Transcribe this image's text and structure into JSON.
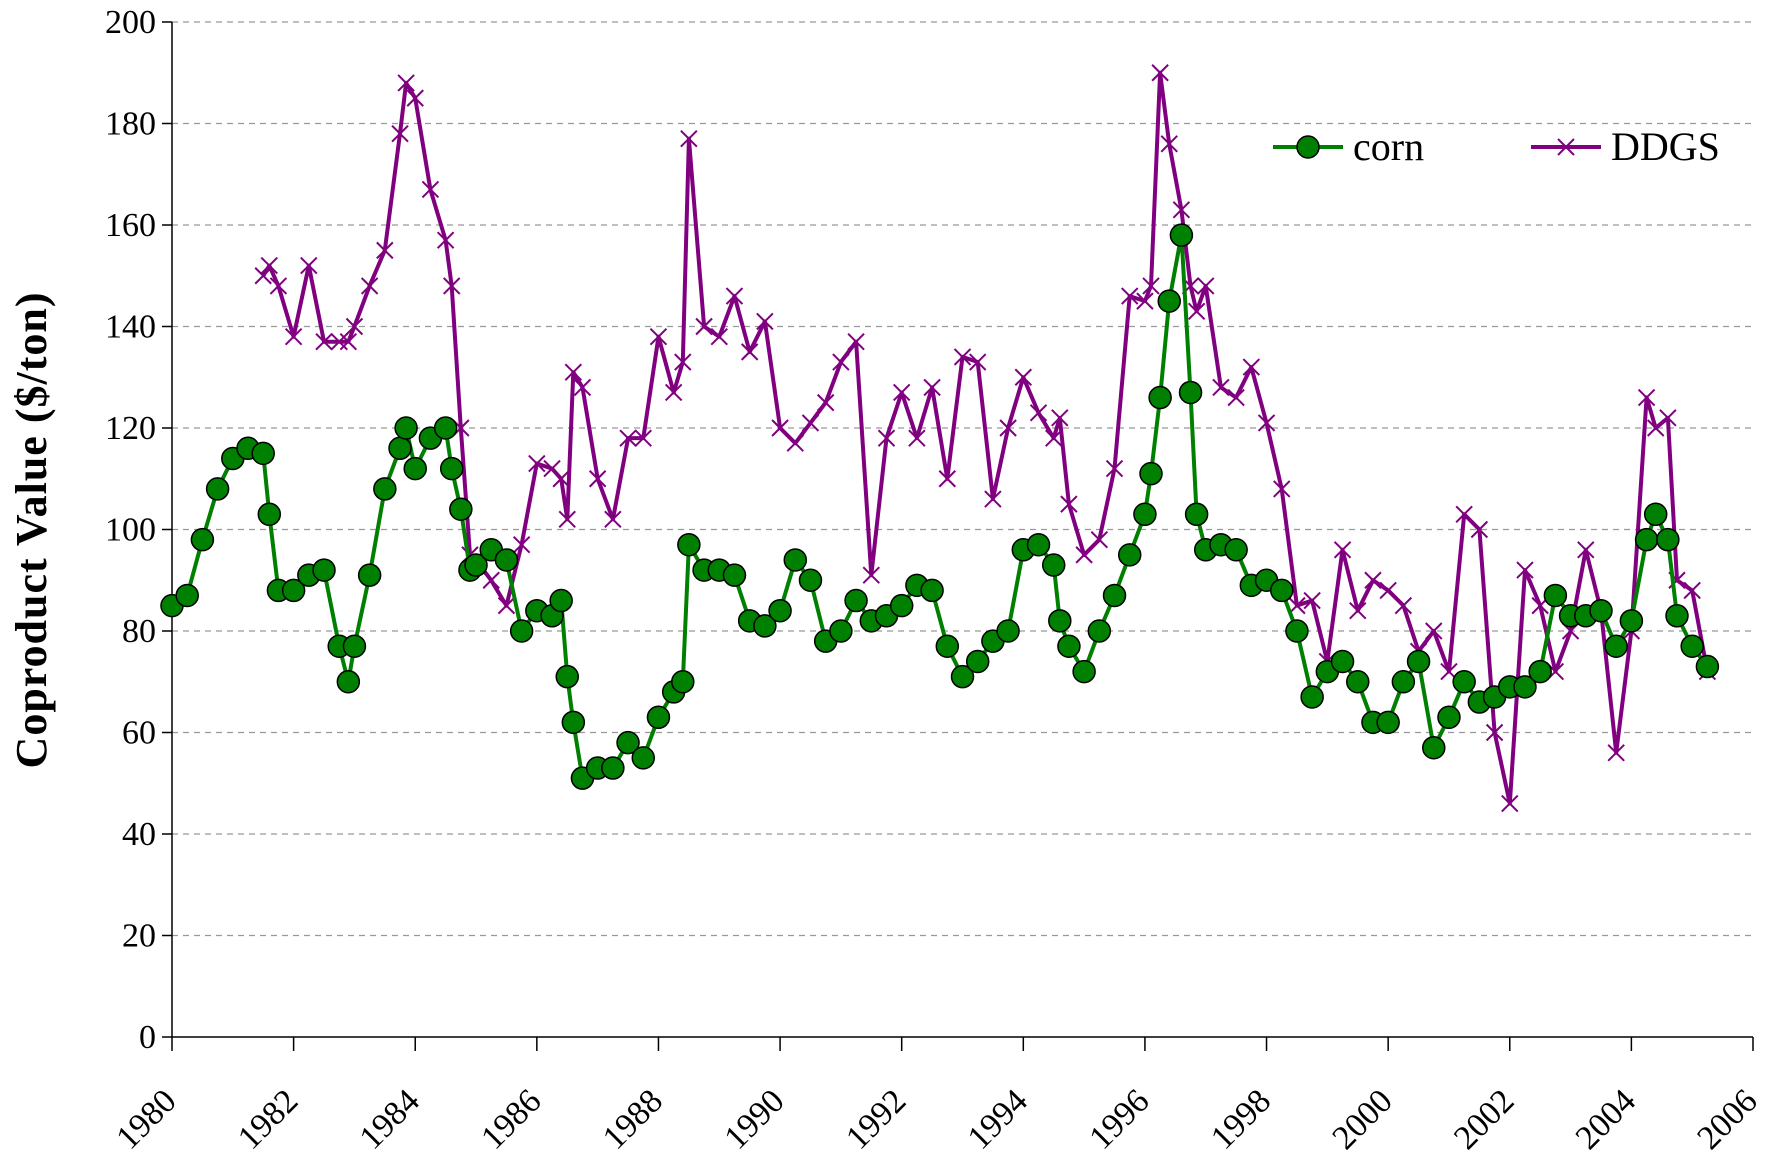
{
  "chart_data": {
    "type": "line",
    "y_label": "Coproduct Value ($/ton)",
    "x": [
      1980,
      1980.25,
      1980.5,
      1980.75,
      1981,
      1981.25,
      1981.5,
      1981.6,
      1981.75,
      1982,
      1982.25,
      1982.5,
      1982.75,
      1982.9,
      1983,
      1983.25,
      1983.5,
      1983.75,
      1983.85,
      1984,
      1984.25,
      1984.5,
      1984.6,
      1984.75,
      1984.9,
      1985,
      1985.25,
      1985.5,
      1985.75,
      1986,
      1986.25,
      1986.4,
      1986.5,
      1986.6,
      1986.75,
      1987,
      1987.25,
      1987.5,
      1987.75,
      1988,
      1988.25,
      1988.4,
      1988.5,
      1988.75,
      1989,
      1989.25,
      1989.5,
      1989.75,
      1990,
      1990.25,
      1990.5,
      1990.75,
      1991,
      1991.25,
      1991.5,
      1991.75,
      1992,
      1992.25,
      1992.5,
      1992.75,
      1993,
      1993.25,
      1993.5,
      1993.75,
      1994,
      1994.25,
      1994.5,
      1994.6,
      1994.75,
      1995,
      1995.25,
      1995.5,
      1995.75,
      1996,
      1996.1,
      1996.25,
      1996.4,
      1996.6,
      1996.75,
      1996.85,
      1997,
      1997.25,
      1997.5,
      1997.75,
      1998,
      1998.25,
      1998.5,
      1998.75,
      1999,
      1999.25,
      1999.5,
      1999.75,
      2000,
      2000.25,
      2000.5,
      2000.75,
      2001,
      2001.25,
      2001.5,
      2001.75,
      2002,
      2002.25,
      2002.5,
      2002.75,
      2003,
      2003.25,
      2003.5,
      2003.75,
      2004,
      2004.25,
      2004.4,
      2004.6,
      2004.75,
      2005,
      2005.25
    ],
    "series": [
      {
        "name": "corn",
        "color": "#008000",
        "marker": "circle",
        "values": [
          85,
          87,
          98,
          108,
          114,
          116,
          115,
          103,
          88,
          88,
          91,
          92,
          77,
          70,
          77,
          91,
          108,
          116,
          120,
          112,
          118,
          120,
          112,
          104,
          92,
          93,
          96,
          94,
          80,
          84,
          83,
          86,
          71,
          62,
          51,
          53,
          53,
          58,
          55,
          63,
          68,
          70,
          97,
          92,
          92,
          91,
          82,
          81,
          84,
          94,
          90,
          78,
          80,
          86,
          82,
          83,
          85,
          89,
          88,
          77,
          71,
          74,
          78,
          80,
          96,
          97,
          93,
          82,
          77,
          72,
          80,
          87,
          95,
          103,
          111,
          126,
          145,
          158,
          127,
          103,
          96,
          97,
          96,
          89,
          90,
          88,
          80,
          67,
          72,
          74,
          70,
          62,
          62,
          70,
          74,
          57,
          63,
          70,
          66,
          67,
          69,
          69,
          72,
          87,
          83,
          83,
          84,
          77,
          82,
          98,
          103,
          98,
          83,
          77,
          73
        ]
      },
      {
        "name": "DDGS",
        "color": "#800080",
        "marker": "x",
        "values": [
          null,
          null,
          null,
          null,
          null,
          null,
          150,
          152,
          148,
          138,
          152,
          137,
          137,
          137,
          140,
          148,
          155,
          178,
          188,
          185,
          167,
          157,
          148,
          120,
          95,
          94,
          90,
          85,
          97,
          113,
          112,
          110,
          102,
          131,
          128,
          110,
          102,
          118,
          118,
          138,
          127,
          133,
          177,
          140,
          138,
          146,
          135,
          141,
          120,
          117,
          121,
          125,
          133,
          137,
          91,
          118,
          127,
          118,
          128,
          110,
          134,
          133,
          106,
          120,
          130,
          123,
          118,
          122,
          105,
          95,
          98,
          112,
          146,
          145,
          148,
          190,
          176,
          163,
          148,
          143,
          148,
          128,
          126,
          132,
          121,
          108,
          85,
          86,
          74,
          96,
          84,
          90,
          88,
          85,
          76,
          80,
          72,
          103,
          100,
          60,
          46,
          92,
          85,
          72,
          80,
          96,
          84,
          56,
          80,
          126,
          120,
          122,
          90,
          88,
          72
        ]
      }
    ],
    "xlim": [
      1980,
      2006
    ],
    "xticks": [
      1980,
      1982,
      1984,
      1986,
      1988,
      1990,
      1992,
      1994,
      1996,
      1998,
      2000,
      2002,
      2004,
      2006
    ],
    "ylim": [
      0,
      200
    ],
    "yticks": [
      0,
      20,
      40,
      60,
      80,
      100,
      120,
      140,
      160,
      180,
      200
    ],
    "grid": true,
    "legend": "top-right"
  }
}
